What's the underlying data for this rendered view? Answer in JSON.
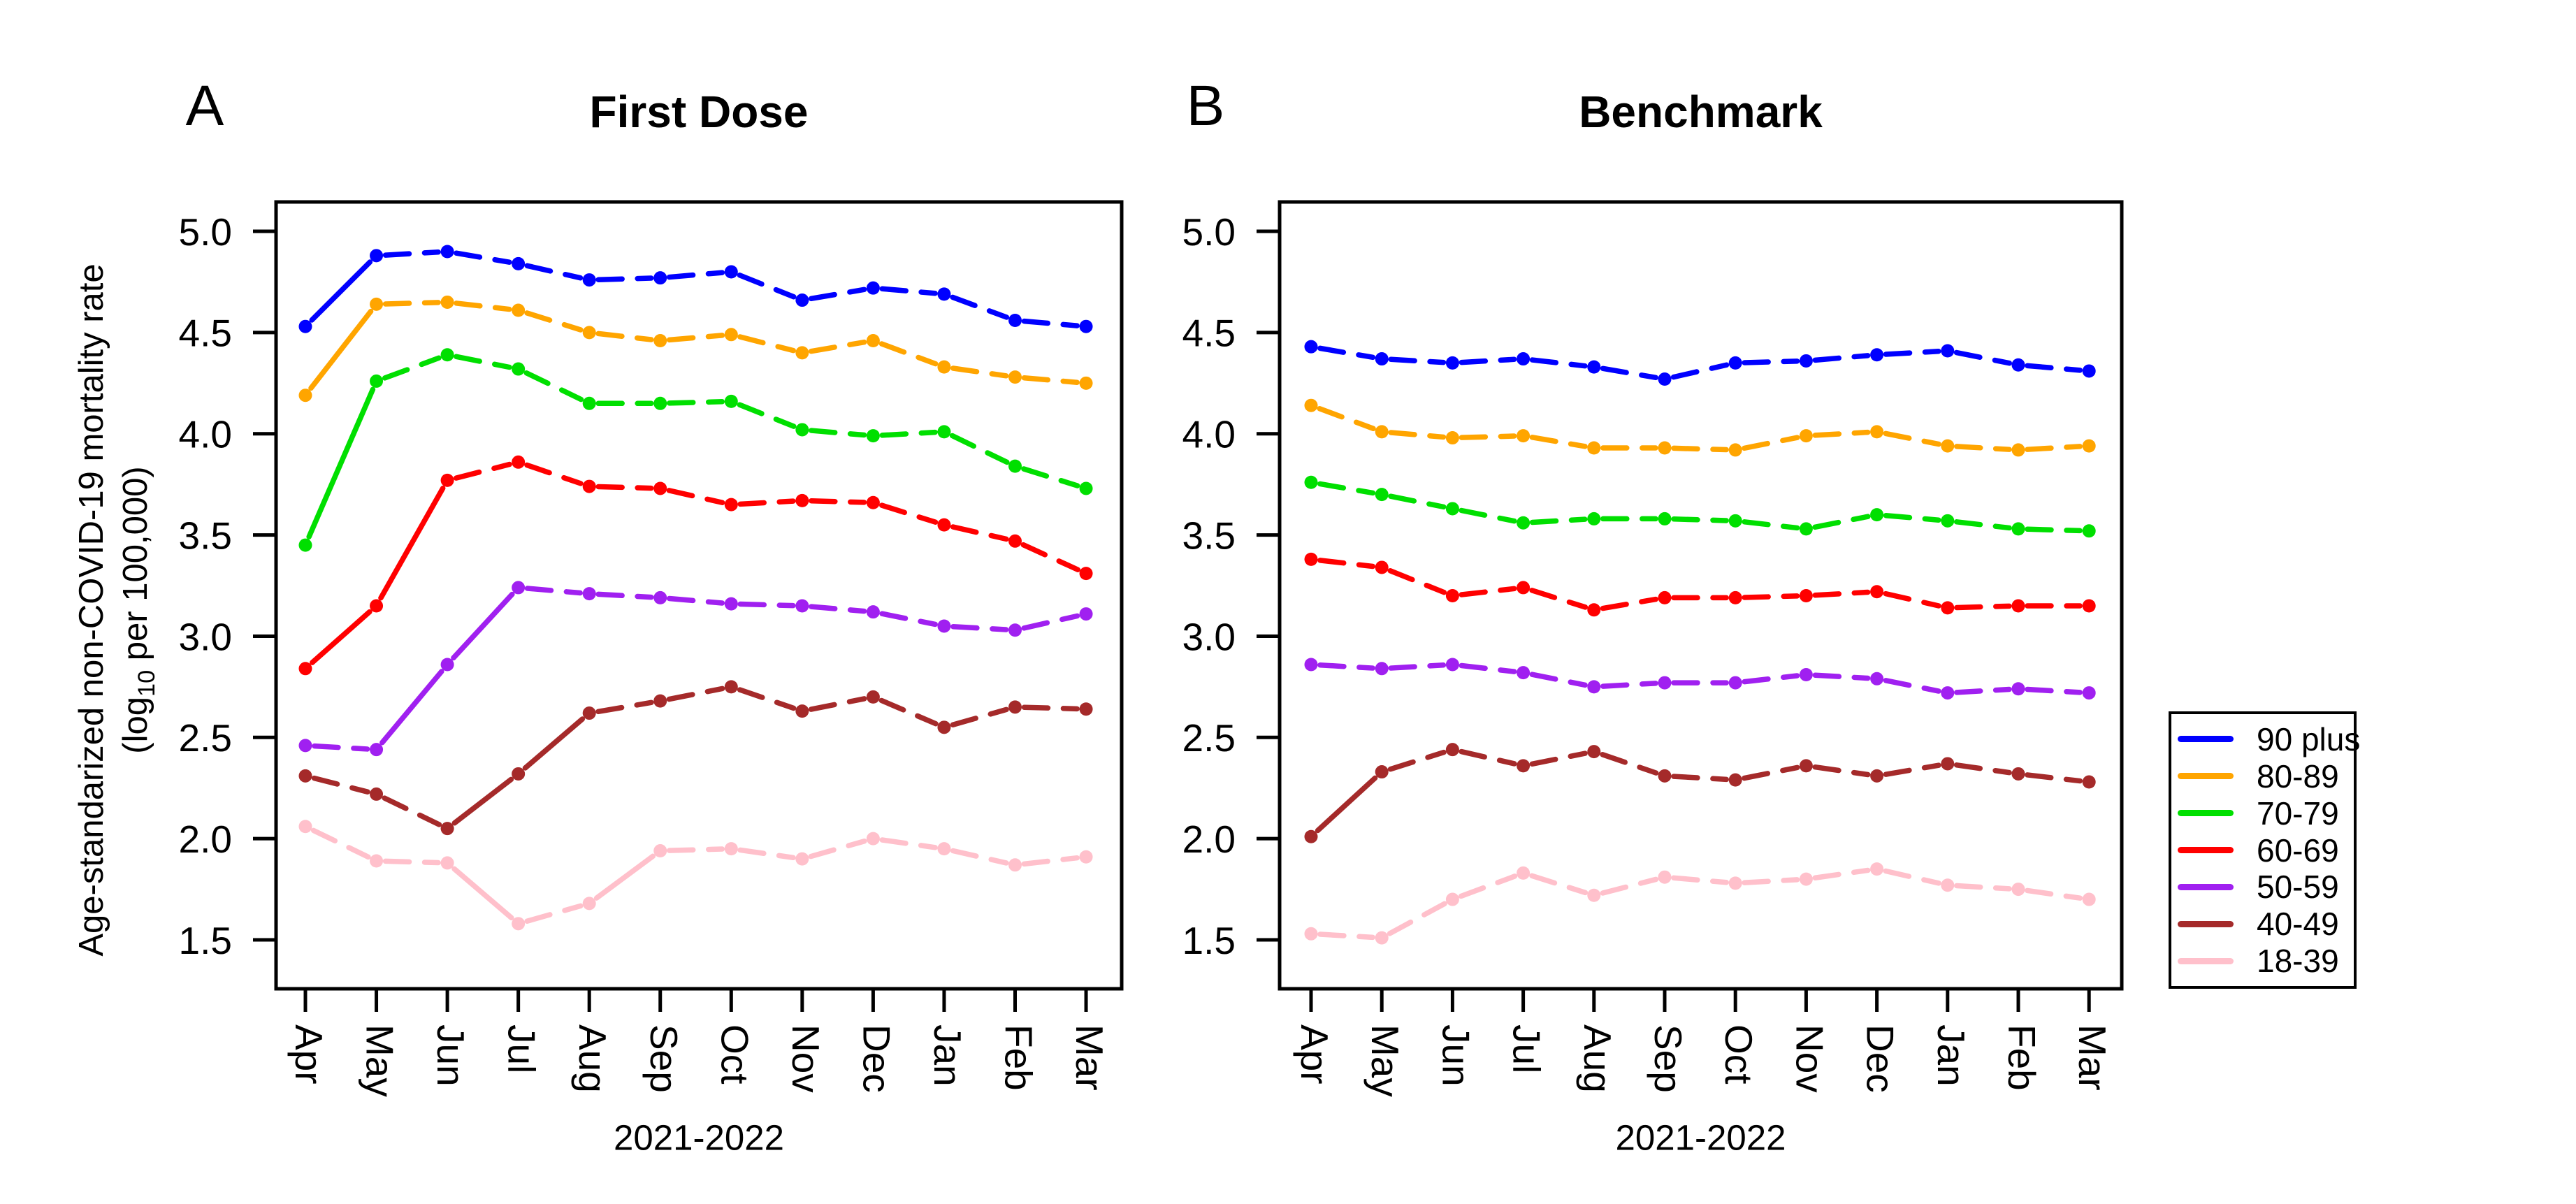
{
  "figure": {
    "y_axis_title_line1": "Age-standarized non-COVID-19 mortality rate",
    "y_axis_title_line2_pre": "(log",
    "y_axis_title_sub": "10",
    "y_axis_title_line2_post": " per 100,000)"
  },
  "months": [
    "Apr",
    "May",
    "Jun",
    "Jul",
    "Aug",
    "Sep",
    "Oct",
    "Nov",
    "Dec",
    "Jan",
    "Feb",
    "Mar"
  ],
  "y_ticks": [
    "5.0",
    "4.5",
    "4.0",
    "3.5",
    "3.0",
    "2.5",
    "2.0",
    "1.5"
  ],
  "panels": {
    "a": {
      "letter": "A",
      "title": "First Dose",
      "caption": "2021-2022"
    },
    "b": {
      "letter": "B",
      "title": "Benchmark",
      "caption": "2021-2022"
    }
  },
  "legend": {
    "items": [
      {
        "label": "90 plus",
        "color": "#0000FF"
      },
      {
        "label": "80-89",
        "color": "#FFA500"
      },
      {
        "label": "70-79",
        "color": "#00DF00"
      },
      {
        "label": "60-69",
        "color": "#FF0000"
      },
      {
        "label": "50-59",
        "color": "#A020F0"
      },
      {
        "label": "40-49",
        "color": "#A52A2A"
      },
      {
        "label": "18-39",
        "color": "#FFC0CB"
      }
    ]
  },
  "chart_data": [
    {
      "type": "line",
      "panel": "A",
      "title": "First Dose",
      "xlabel": "2021-2022",
      "ylabel": "Age-standarized non-COVID-19 mortality rate (log10 per 100,000)",
      "x": [
        "Apr",
        "May",
        "Jun",
        "Jul",
        "Aug",
        "Sep",
        "Oct",
        "Nov",
        "Dec",
        "Jan",
        "Feb",
        "Mar"
      ],
      "ylim": [
        1.25,
        5.15
      ],
      "yticks": [
        5.0,
        4.5,
        4.0,
        3.5,
        3.0,
        2.5,
        2.0,
        1.5
      ],
      "grid": false,
      "legend_position": "right-outside",
      "line_style": "dashed-with-points",
      "series": [
        {
          "name": "90 plus",
          "color": "#0000FF",
          "values": [
            4.53,
            4.88,
            4.9,
            4.84,
            4.76,
            4.77,
            4.8,
            4.66,
            4.72,
            4.69,
            4.56,
            4.53
          ]
        },
        {
          "name": "80-89",
          "color": "#FFA500",
          "values": [
            4.19,
            4.64,
            4.65,
            4.61,
            4.5,
            4.46,
            4.49,
            4.4,
            4.46,
            4.33,
            4.28,
            4.25
          ]
        },
        {
          "name": "70-79",
          "color": "#00DF00",
          "values": [
            3.45,
            4.26,
            4.39,
            4.32,
            4.15,
            4.15,
            4.16,
            4.02,
            3.99,
            4.01,
            3.84,
            3.73
          ]
        },
        {
          "name": "60-69",
          "color": "#FF0000",
          "values": [
            2.84,
            3.15,
            3.77,
            3.86,
            3.74,
            3.73,
            3.65,
            3.67,
            3.66,
            3.55,
            3.47,
            3.31
          ]
        },
        {
          "name": "50-59",
          "color": "#A020F0",
          "values": [
            2.46,
            2.44,
            2.86,
            3.24,
            3.21,
            3.19,
            3.16,
            3.15,
            3.12,
            3.05,
            3.03,
            3.11
          ]
        },
        {
          "name": "40-49",
          "color": "#A52A2A",
          "values": [
            2.31,
            2.22,
            2.05,
            2.32,
            2.62,
            2.68,
            2.75,
            2.63,
            2.7,
            2.55,
            2.65,
            2.64
          ]
        },
        {
          "name": "18-39",
          "color": "#FFC0CB",
          "values": [
            2.06,
            1.89,
            1.88,
            1.58,
            1.68,
            1.94,
            1.95,
            1.9,
            2.0,
            1.95,
            1.87,
            1.91
          ]
        }
      ]
    },
    {
      "type": "line",
      "panel": "B",
      "title": "Benchmark",
      "xlabel": "2021-2022",
      "ylabel": "Age-standarized non-COVID-19 mortality rate (log10 per 100,000)",
      "x": [
        "Apr",
        "May",
        "Jun",
        "Jul",
        "Aug",
        "Sep",
        "Oct",
        "Nov",
        "Dec",
        "Jan",
        "Feb",
        "Mar"
      ],
      "ylim": [
        1.25,
        5.15
      ],
      "yticks": [
        5.0,
        4.5,
        4.0,
        3.5,
        3.0,
        2.5,
        2.0,
        1.5
      ],
      "grid": false,
      "legend_position": "right-outside",
      "line_style": "dashed-with-points",
      "series": [
        {
          "name": "90 plus",
          "color": "#0000FF",
          "values": [
            4.43,
            4.37,
            4.35,
            4.37,
            4.33,
            4.27,
            4.35,
            4.36,
            4.39,
            4.41,
            4.34,
            4.31
          ]
        },
        {
          "name": "80-89",
          "color": "#FFA500",
          "values": [
            4.14,
            4.01,
            3.98,
            3.99,
            3.93,
            3.93,
            3.92,
            3.99,
            4.01,
            3.94,
            3.92,
            3.94
          ]
        },
        {
          "name": "70-79",
          "color": "#00DF00",
          "values": [
            3.76,
            3.7,
            3.63,
            3.56,
            3.58,
            3.58,
            3.57,
            3.53,
            3.6,
            3.57,
            3.53,
            3.52
          ]
        },
        {
          "name": "60-69",
          "color": "#FF0000",
          "values": [
            3.38,
            3.34,
            3.2,
            3.24,
            3.13,
            3.19,
            3.19,
            3.2,
            3.22,
            3.14,
            3.15,
            3.15
          ]
        },
        {
          "name": "50-59",
          "color": "#A020F0",
          "values": [
            2.86,
            2.84,
            2.86,
            2.82,
            2.75,
            2.77,
            2.77,
            2.81,
            2.79,
            2.72,
            2.74,
            2.72
          ]
        },
        {
          "name": "40-49",
          "color": "#A52A2A",
          "values": [
            2.01,
            2.33,
            2.44,
            2.36,
            2.43,
            2.31,
            2.29,
            2.36,
            2.31,
            2.37,
            2.32,
            2.28
          ]
        },
        {
          "name": "18-39",
          "color": "#FFC0CB",
          "values": [
            1.53,
            1.51,
            1.7,
            1.83,
            1.72,
            1.81,
            1.78,
            1.8,
            1.85,
            1.77,
            1.75,
            1.7
          ]
        }
      ]
    }
  ]
}
